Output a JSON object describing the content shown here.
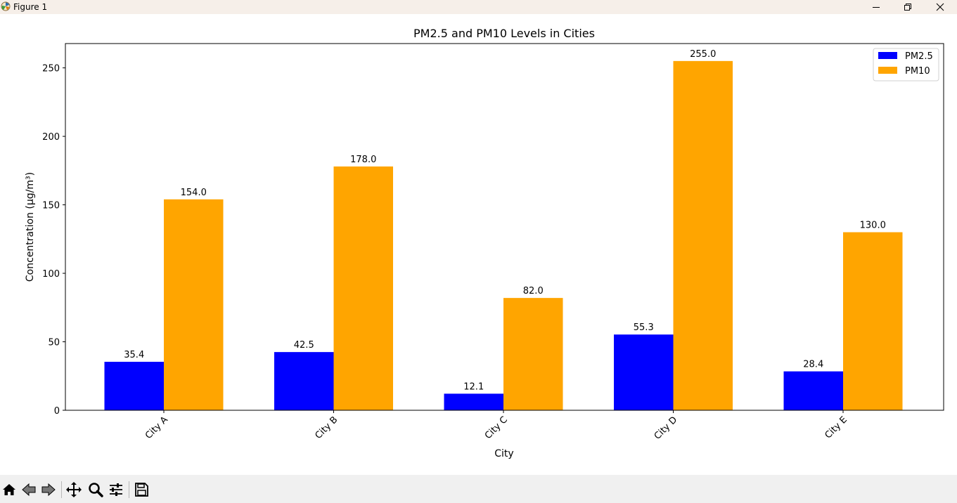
{
  "window": {
    "title": "Figure 1"
  },
  "toolbar": {
    "items": [
      {
        "name": "home-icon"
      },
      {
        "name": "back-icon"
      },
      {
        "name": "forward-icon"
      },
      {
        "name": "pan-icon"
      },
      {
        "name": "zoom-icon"
      },
      {
        "name": "configure-subplots-icon"
      },
      {
        "name": "save-icon"
      }
    ]
  },
  "chart_data": {
    "type": "bar",
    "title": "PM2.5 and PM10 Levels in Cities",
    "xlabel": "City",
    "ylabel": "Concentration (µg/m³)",
    "categories": [
      "City A",
      "City B",
      "City C",
      "City D",
      "City E"
    ],
    "series": [
      {
        "name": "PM2.5",
        "color": "#0000ff",
        "values": [
          35.4,
          42.5,
          12.1,
          55.3,
          28.4
        ]
      },
      {
        "name": "PM10",
        "color": "#ffa500",
        "values": [
          154.0,
          178.0,
          82.0,
          255.0,
          130.0
        ]
      }
    ],
    "ylim": [
      0,
      267.75
    ],
    "yticks": [
      0,
      50,
      100,
      150,
      200,
      250
    ],
    "legend_position": "top-right",
    "grid": false,
    "value_labels": true
  }
}
